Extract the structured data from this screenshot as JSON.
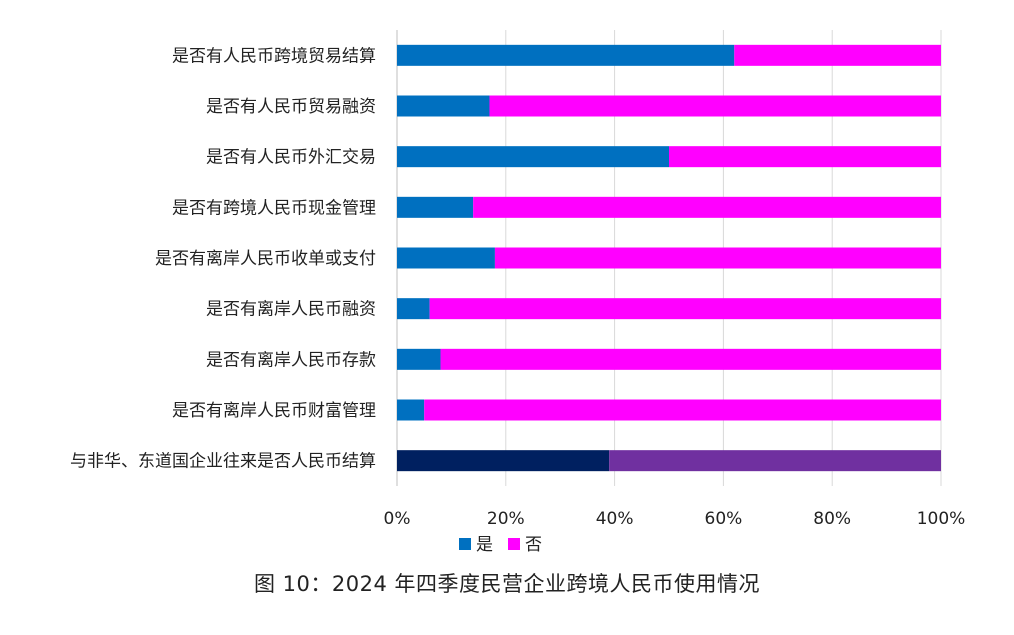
{
  "chart_data": {
    "type": "bar",
    "orientation": "horizontal",
    "stacked": "percent",
    "categories": [
      "是否有人民币跨境贸易结算",
      "是否有人民币贸易融资",
      "是否有人民币外汇交易",
      "是否有跨境人民币现金管理",
      "是否有离岸人民币收单或支付",
      "是否有离岸人民币融资",
      "是否有离岸人民币存款",
      "是否有离岸人民币财富管理",
      "与非华、东道国企业往来是否人民币结算"
    ],
    "series": [
      {
        "name": "是",
        "color": "#0070C0",
        "values": [
          62,
          17,
          50,
          14,
          18,
          6,
          8,
          5,
          39
        ]
      },
      {
        "name": "否",
        "color": "#FF00FF",
        "values": [
          38,
          83,
          50,
          86,
          82,
          94,
          92,
          95,
          61
        ]
      }
    ],
    "last_row_colors": {
      "是": "#002060",
      "否": "#7030A0"
    },
    "xlim": [
      0,
      100
    ],
    "x_ticks": [
      "0%",
      "20%",
      "40%",
      "60%",
      "80%",
      "100%"
    ],
    "grid": "vertical",
    "legend_position": "bottom-left",
    "caption": "图 10：2024 年四季度民营企业跨境人民币使用情况"
  }
}
